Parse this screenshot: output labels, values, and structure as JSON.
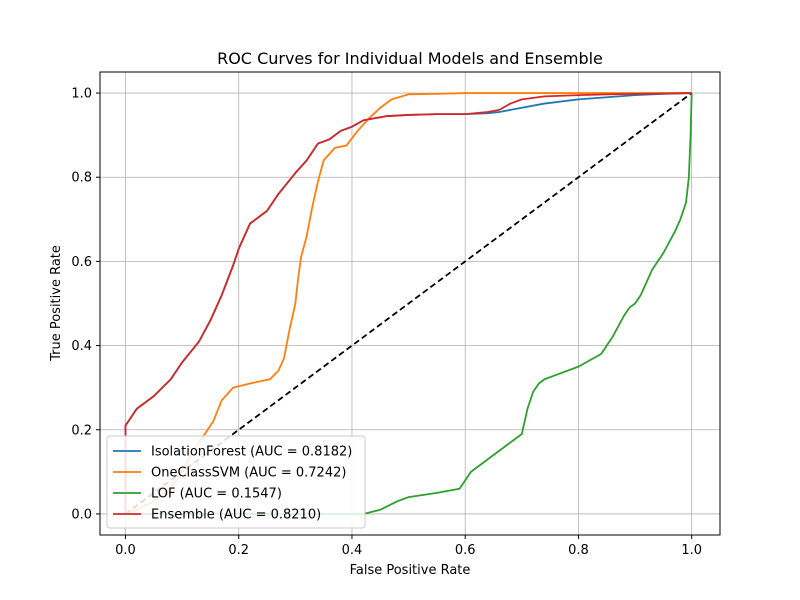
{
  "chart_data": {
    "type": "line",
    "title": "ROC Curves for Individual Models and Ensemble",
    "xlabel": "False Positive Rate",
    "ylabel": "True Positive Rate",
    "xlim": [
      -0.045,
      1.05
    ],
    "ylim": [
      -0.05,
      1.05
    ],
    "xticks": [
      0.0,
      0.2,
      0.4,
      0.6,
      0.8,
      1.0
    ],
    "xtick_labels": [
      "0.0",
      "0.2",
      "0.4",
      "0.6",
      "0.8",
      "1.0"
    ],
    "yticks": [
      0.0,
      0.2,
      0.4,
      0.6,
      0.8,
      1.0
    ],
    "ytick_labels": [
      "0.0",
      "0.2",
      "0.4",
      "0.6",
      "0.8",
      "1.0"
    ],
    "grid": true,
    "legend_position": "lower-left",
    "series": [
      {
        "name": "IsolationForest (AUC = 0.8182)",
        "color": "#1f77b4",
        "x": [
          0.0,
          0.0,
          0.005,
          0.02,
          0.05,
          0.08,
          0.1,
          0.13,
          0.15,
          0.17,
          0.19,
          0.2,
          0.22,
          0.25,
          0.27,
          0.3,
          0.32,
          0.34,
          0.36,
          0.38,
          0.4,
          0.42,
          0.44,
          0.46,
          0.5,
          0.55,
          0.6,
          0.64,
          0.66,
          0.68,
          0.7,
          0.74,
          0.8,
          0.85,
          0.9,
          0.95,
          1.0
        ],
        "y": [
          0.0,
          0.21,
          0.22,
          0.25,
          0.28,
          0.32,
          0.36,
          0.41,
          0.46,
          0.52,
          0.59,
          0.63,
          0.69,
          0.72,
          0.76,
          0.81,
          0.84,
          0.88,
          0.89,
          0.91,
          0.92,
          0.935,
          0.94,
          0.945,
          0.948,
          0.95,
          0.95,
          0.952,
          0.955,
          0.96,
          0.965,
          0.975,
          0.985,
          0.99,
          0.995,
          0.998,
          1.0
        ]
      },
      {
        "name": "OneClassSVM (AUC = 0.7242)",
        "color": "#ff7f0e",
        "x": [
          0.0,
          0.02,
          0.05,
          0.08,
          0.1,
          0.12,
          0.14,
          0.155,
          0.17,
          0.19,
          0.22,
          0.255,
          0.27,
          0.28,
          0.29,
          0.3,
          0.305,
          0.31,
          0.32,
          0.33,
          0.34,
          0.35,
          0.37,
          0.39,
          0.41,
          0.43,
          0.45,
          0.47,
          0.5,
          0.55,
          0.6,
          0.7,
          0.8,
          0.9,
          1.0
        ],
        "y": [
          0.0,
          0.01,
          0.03,
          0.06,
          0.1,
          0.15,
          0.19,
          0.22,
          0.27,
          0.3,
          0.31,
          0.32,
          0.34,
          0.37,
          0.44,
          0.5,
          0.56,
          0.61,
          0.66,
          0.73,
          0.79,
          0.84,
          0.87,
          0.875,
          0.91,
          0.94,
          0.965,
          0.985,
          0.997,
          0.998,
          1.0,
          1.0,
          1.0,
          1.0,
          1.0
        ]
      },
      {
        "name": "LOF (AUC = 0.1547)",
        "color": "#2ca02c",
        "x": [
          0.0,
          0.1,
          0.2,
          0.3,
          0.42,
          0.45,
          0.48,
          0.5,
          0.55,
          0.59,
          0.61,
          0.65,
          0.7,
          0.71,
          0.72,
          0.73,
          0.74,
          0.76,
          0.8,
          0.84,
          0.86,
          0.88,
          0.89,
          0.9,
          0.91,
          0.93,
          0.95,
          0.97,
          0.98,
          0.99,
          0.995,
          0.998,
          1.0
        ],
        "y": [
          0.0,
          0.0,
          0.0,
          0.0,
          0.0,
          0.01,
          0.03,
          0.04,
          0.05,
          0.06,
          0.1,
          0.14,
          0.19,
          0.25,
          0.29,
          0.31,
          0.32,
          0.33,
          0.35,
          0.38,
          0.42,
          0.47,
          0.49,
          0.5,
          0.52,
          0.58,
          0.62,
          0.67,
          0.7,
          0.74,
          0.8,
          0.9,
          1.0
        ]
      },
      {
        "name": "Ensemble (AUC = 0.8210)",
        "color": "#d62728",
        "x": [
          0.0,
          0.0,
          0.005,
          0.02,
          0.05,
          0.08,
          0.1,
          0.13,
          0.15,
          0.17,
          0.19,
          0.2,
          0.22,
          0.25,
          0.27,
          0.3,
          0.32,
          0.34,
          0.36,
          0.38,
          0.4,
          0.42,
          0.44,
          0.46,
          0.5,
          0.55,
          0.6,
          0.64,
          0.66,
          0.68,
          0.7,
          0.74,
          0.8,
          0.85,
          0.9,
          0.95,
          1.0
        ],
        "y": [
          0.0,
          0.21,
          0.22,
          0.25,
          0.28,
          0.32,
          0.36,
          0.41,
          0.46,
          0.52,
          0.59,
          0.63,
          0.69,
          0.72,
          0.76,
          0.81,
          0.84,
          0.88,
          0.89,
          0.91,
          0.92,
          0.935,
          0.94,
          0.945,
          0.948,
          0.95,
          0.95,
          0.955,
          0.96,
          0.975,
          0.985,
          0.992,
          0.995,
          0.997,
          0.998,
          0.999,
          1.0
        ]
      }
    ],
    "reference_line": {
      "x": [
        0.0,
        1.0
      ],
      "y": [
        0.0,
        1.0
      ],
      "color": "#000000",
      "style": "dashed"
    }
  }
}
